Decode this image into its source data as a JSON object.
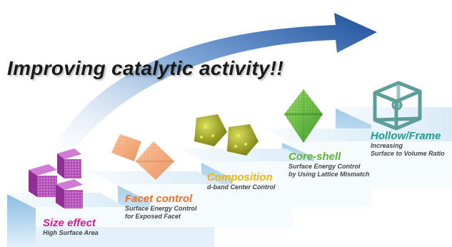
{
  "title": "Improving catalytic activity!!",
  "steps": [
    {
      "heading": "Size effect",
      "desc": [
        "High Surface Area"
      ],
      "color": "#d61a9b"
    },
    {
      "heading": "Facet control",
      "desc": [
        "Surface Energy Control",
        "for Exposed Facet"
      ],
      "color": "#f36f21"
    },
    {
      "heading": "Composition",
      "desc": [
        "d-band Center Control"
      ],
      "color": "#f4b400"
    },
    {
      "heading": "Core-shell",
      "desc": [
        "Surface Energy Control",
        "by Using Lattice Mismatch"
      ],
      "color": "#5fb43a"
    },
    {
      "heading": "Hollow/Frame",
      "desc": [
        "Increasing",
        "Surface to Volume Ratio"
      ],
      "color": "#1f9c8c"
    }
  ],
  "colors": {
    "arrow": "#1d4f9c",
    "step_top": "#eef6fc",
    "step_front": "#6aa9dc"
  },
  "icons": [
    "purple-cubes-icon",
    "orange-octahedra-icon",
    "olive-alloy-crystals-icon",
    "green-core-shell-octahedron-icon",
    "teal-hollow-frame-icon"
  ]
}
